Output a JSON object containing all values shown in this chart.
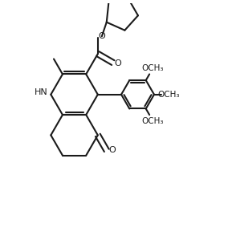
{
  "background_color": "#ffffff",
  "bond_color": "#1a1a1a",
  "lw": 1.5,
  "figsize": [
    2.84,
    3.14
  ],
  "dpi": 100,
  "xlim": [
    0,
    10
  ],
  "ylim": [
    0,
    11
  ]
}
